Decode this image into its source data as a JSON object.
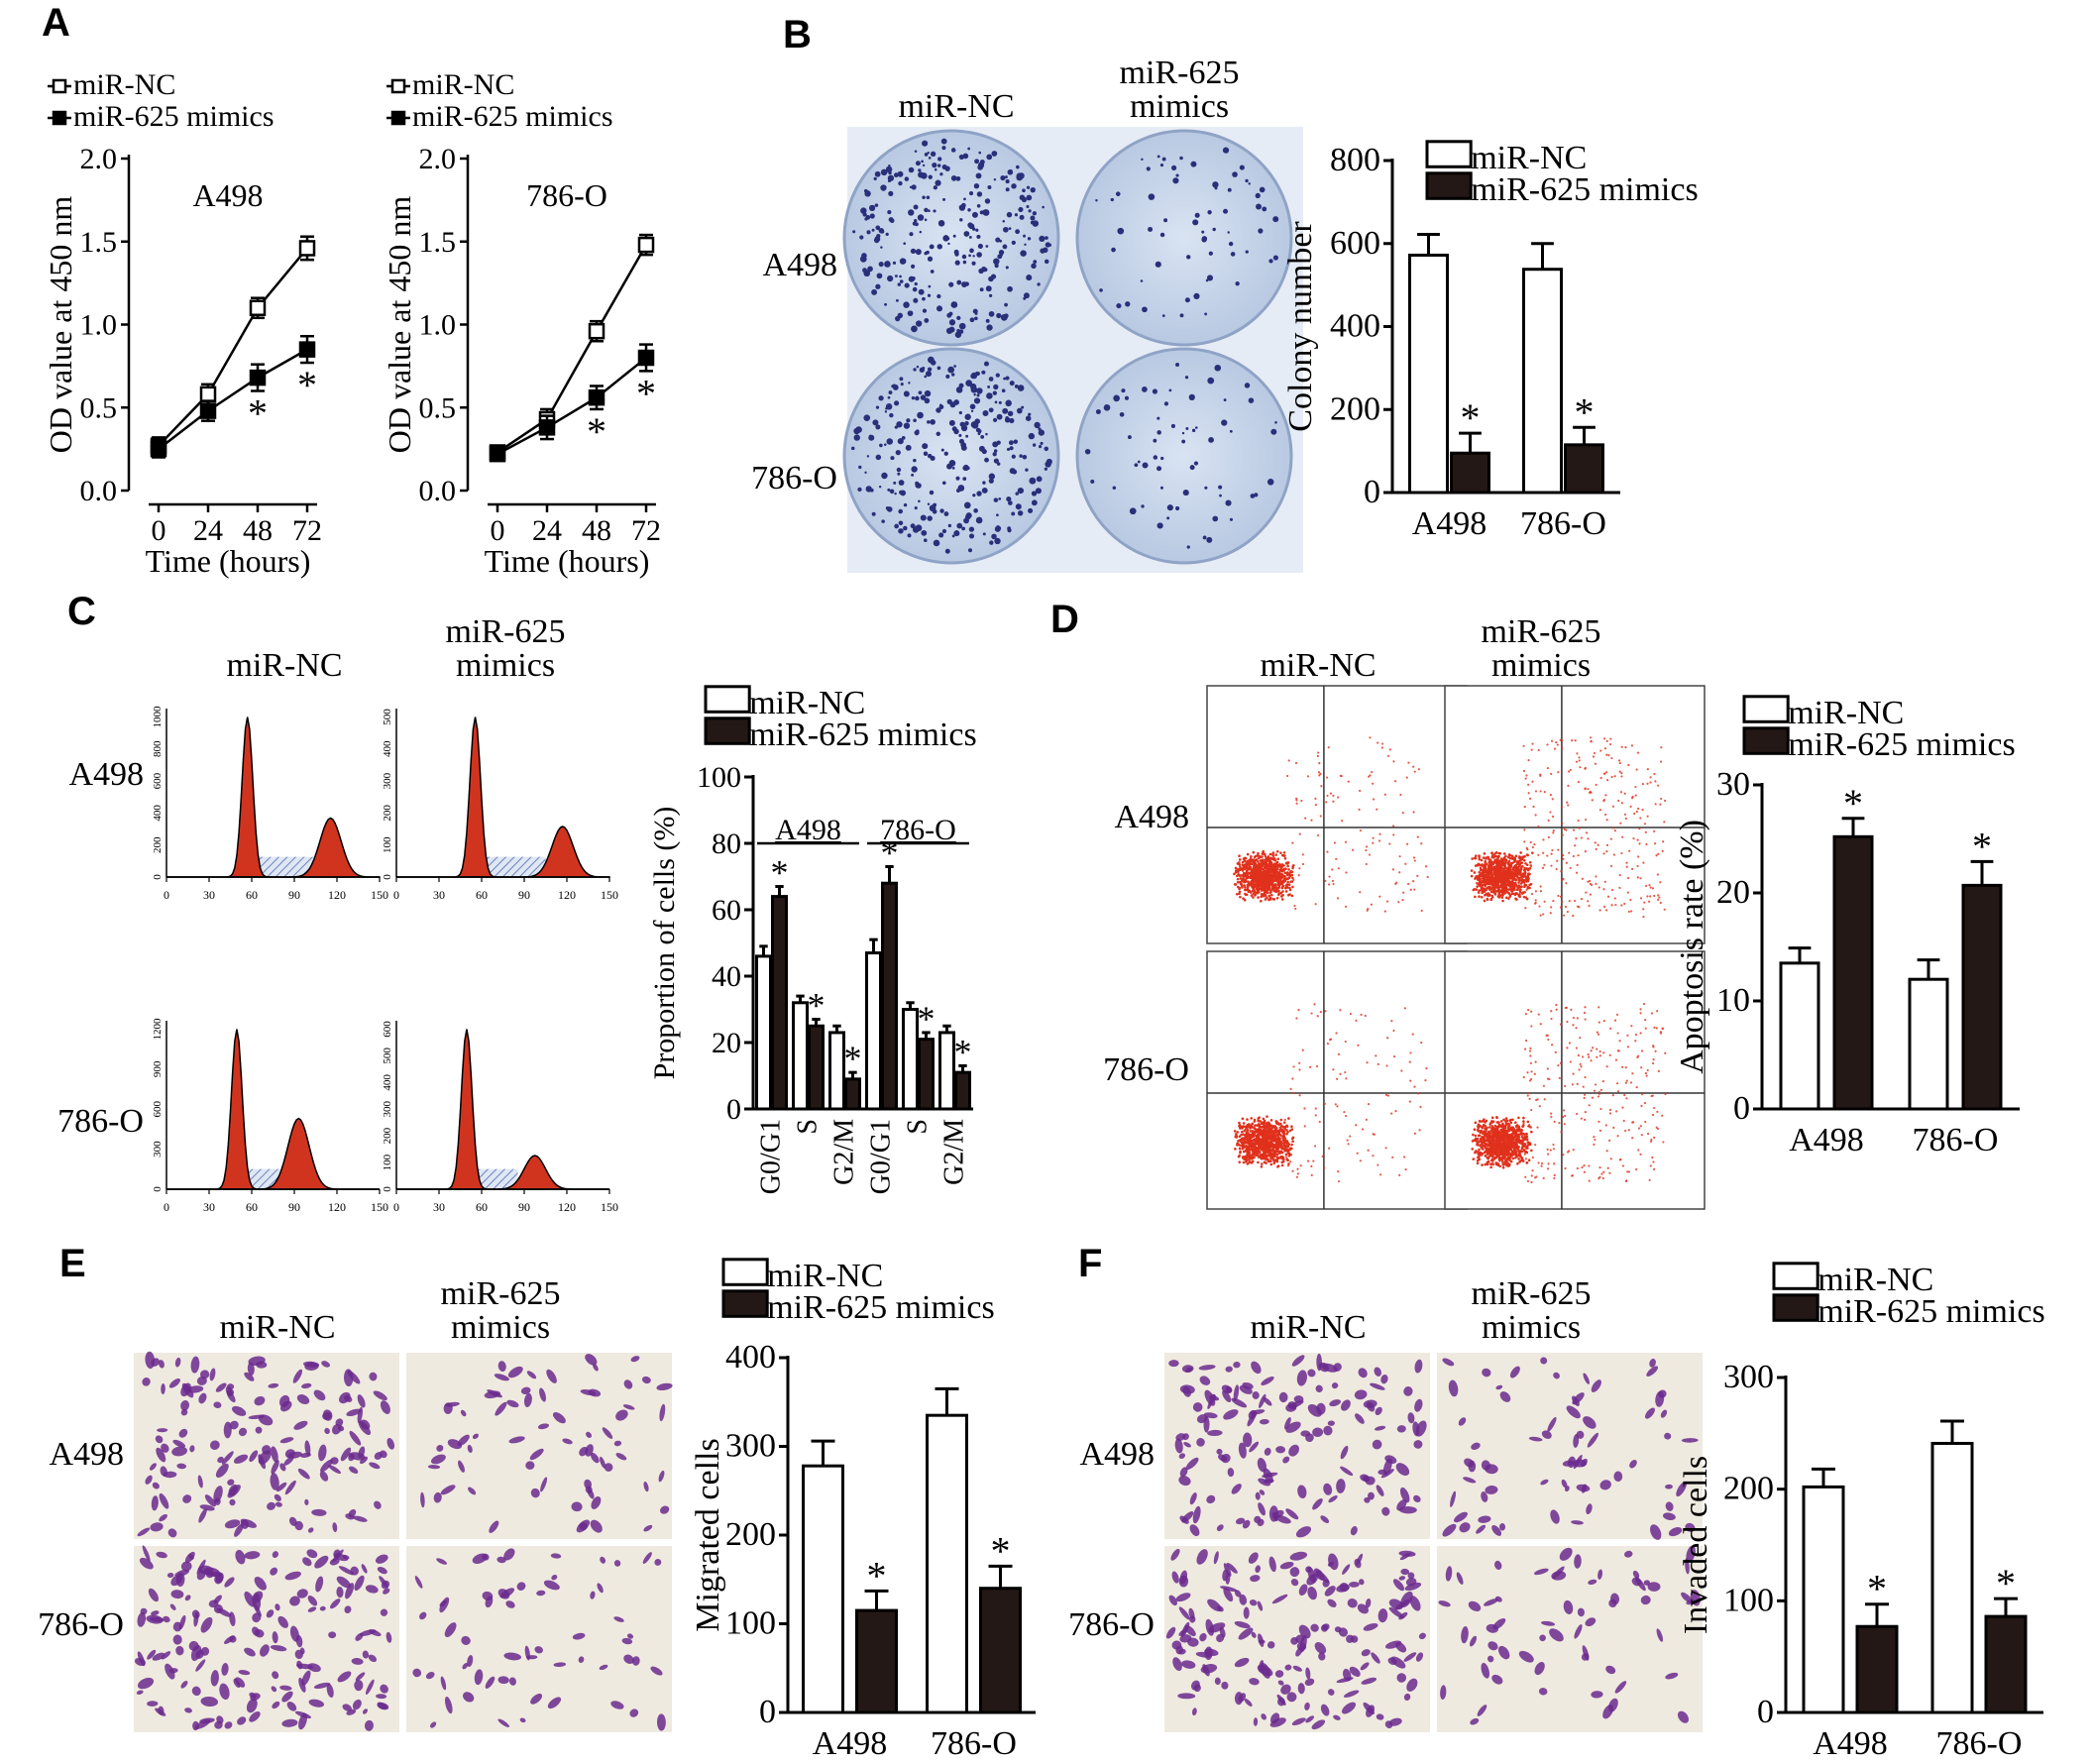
{
  "panel_labels": [
    "A",
    "B",
    "C",
    "D",
    "E",
    "F"
  ],
  "legend": {
    "control": "miR-NC",
    "treatment": "miR-625 mimics"
  },
  "image_labels": {
    "col_control": "miR-NC",
    "col_treatment_line1": "miR-625",
    "col_treatment_line2": "mimics",
    "row1": "A498",
    "row2": "786-O"
  },
  "colors": {
    "control_fill": "#ffffff",
    "treatment_fill": "#231815",
    "axis": "#000000",
    "histogram_fill": "#d0341f",
    "dot": "#e0311c",
    "stain": "#6b2a8e",
    "colony": "#2a2f7a",
    "plate_bg": "#c8d6ea"
  },
  "significance_marker": "*",
  "histogram_axis": {
    "x_ticks": [
      "0",
      "30",
      "60",
      "90",
      "120",
      "150"
    ],
    "a498_nc_y": [
      "0",
      "200",
      "400",
      "600",
      "800",
      "1000"
    ],
    "a498_mim_y": [
      "0",
      "100",
      "200",
      "300",
      "400",
      "500"
    ],
    "o786_nc_y": [
      "0",
      "300",
      "600",
      "900",
      "1200"
    ],
    "o786_mim_y": [
      "0",
      "100",
      "200",
      "300",
      "400",
      "500",
      "600"
    ]
  },
  "chart_data": [
    {
      "id": "A1",
      "type": "line",
      "subtitle": "A498",
      "x": [
        0,
        24,
        48,
        72
      ],
      "x_ticks": [
        "0",
        "24",
        "48",
        "72"
      ],
      "xlabel": "Time (hours)",
      "ylabel": "OD value at 450 nm",
      "ylim": [
        0,
        2.0
      ],
      "y_ticks": [
        "0.0",
        "0.5",
        "1.0",
        "1.5",
        "2.0"
      ],
      "series": [
        {
          "name": "miR-NC",
          "values": [
            0.27,
            0.58,
            1.1,
            1.46
          ],
          "err": [
            0.05,
            0.06,
            0.06,
            0.07
          ]
        },
        {
          "name": "miR-625 mimics",
          "values": [
            0.25,
            0.48,
            0.68,
            0.85
          ],
          "err": [
            0.05,
            0.06,
            0.08,
            0.08
          ],
          "sig": [
            false,
            false,
            true,
            true
          ]
        }
      ]
    },
    {
      "id": "A2",
      "type": "line",
      "subtitle": "786-O",
      "x": [
        0,
        24,
        48,
        72
      ],
      "x_ticks": [
        "0",
        "24",
        "48",
        "72"
      ],
      "xlabel": "Time (hours)",
      "ylabel": "OD value at 450 nm",
      "ylim": [
        0,
        2.0
      ],
      "y_ticks": [
        "0.0",
        "0.5",
        "1.0",
        "1.5",
        "2.0"
      ],
      "series": [
        {
          "name": "miR-NC",
          "values": [
            0.23,
            0.43,
            0.96,
            1.48
          ],
          "err": [
            0.04,
            0.06,
            0.06,
            0.06
          ]
        },
        {
          "name": "miR-625 mimics",
          "values": [
            0.22,
            0.38,
            0.56,
            0.8
          ],
          "err": [
            0.04,
            0.07,
            0.07,
            0.08
          ],
          "sig": [
            false,
            false,
            true,
            true
          ]
        }
      ]
    },
    {
      "id": "B",
      "type": "bar",
      "categories": [
        "A498",
        "786-O"
      ],
      "ylabel": "Colony number",
      "ylim": [
        0,
        800
      ],
      "y_ticks": [
        "0",
        "200",
        "400",
        "600",
        "800"
      ],
      "series": [
        {
          "name": "miR-NC",
          "values": [
            572,
            538
          ],
          "err": [
            50,
            62
          ]
        },
        {
          "name": "miR-625 mimics",
          "values": [
            95,
            115
          ],
          "err": [
            48,
            42
          ],
          "sig": [
            true,
            true
          ]
        }
      ]
    },
    {
      "id": "C",
      "type": "bar",
      "categories": [
        "G0/G1",
        "S",
        "G2/M",
        "G0/G1",
        "S",
        "G2/M"
      ],
      "groups": [
        {
          "label": "A498",
          "from": 0,
          "to": 2
        },
        {
          "label": "786-O",
          "from": 3,
          "to": 5
        }
      ],
      "ylabel": "Proportion of cells (%)",
      "ylim": [
        0,
        100
      ],
      "y_ticks": [
        "0",
        "20",
        "40",
        "60",
        "80",
        "100"
      ],
      "series": [
        {
          "name": "miR-NC",
          "values": [
            46,
            32,
            23,
            47,
            30,
            23
          ],
          "err": [
            3,
            2,
            2,
            4,
            2,
            2
          ]
        },
        {
          "name": "miR-625 mimics",
          "values": [
            64,
            25,
            9,
            68,
            21,
            11
          ],
          "err": [
            3,
            2,
            2,
            5,
            2,
            2
          ],
          "sig": [
            true,
            true,
            true,
            true,
            true,
            true
          ]
        }
      ]
    },
    {
      "id": "D",
      "type": "bar",
      "categories": [
        "A498",
        "786-O"
      ],
      "ylabel": "Apoptosis rate (%)",
      "ylim": [
        0,
        30
      ],
      "y_ticks": [
        "0",
        "10",
        "20",
        "30"
      ],
      "series": [
        {
          "name": "miR-NC",
          "values": [
            13.5,
            12.0
          ],
          "err": [
            1.4,
            1.8
          ]
        },
        {
          "name": "miR-625 mimics",
          "values": [
            25.2,
            20.7
          ],
          "err": [
            1.7,
            2.2
          ],
          "sig": [
            true,
            true
          ]
        }
      ]
    },
    {
      "id": "E",
      "type": "bar",
      "categories": [
        "A498",
        "786-O"
      ],
      "ylabel": "Migrated cells",
      "ylim": [
        0,
        400
      ],
      "y_ticks": [
        "0",
        "100",
        "200",
        "300",
        "400"
      ],
      "series": [
        {
          "name": "miR-NC",
          "values": [
            278,
            335
          ],
          "err": [
            28,
            30
          ]
        },
        {
          "name": "miR-625 mimics",
          "values": [
            115,
            140
          ],
          "err": [
            22,
            25
          ],
          "sig": [
            true,
            true
          ]
        }
      ]
    },
    {
      "id": "F",
      "type": "bar",
      "categories": [
        "A498",
        "786-O"
      ],
      "ylabel": "Invaded cells",
      "ylim": [
        0,
        300
      ],
      "y_ticks": [
        "0",
        "100",
        "200",
        "300"
      ],
      "series": [
        {
          "name": "miR-NC",
          "values": [
            202,
            241
          ],
          "err": [
            16,
            20
          ]
        },
        {
          "name": "miR-625 mimics",
          "values": [
            77,
            86
          ],
          "err": [
            20,
            16
          ],
          "sig": [
            true,
            true
          ]
        }
      ]
    }
  ]
}
